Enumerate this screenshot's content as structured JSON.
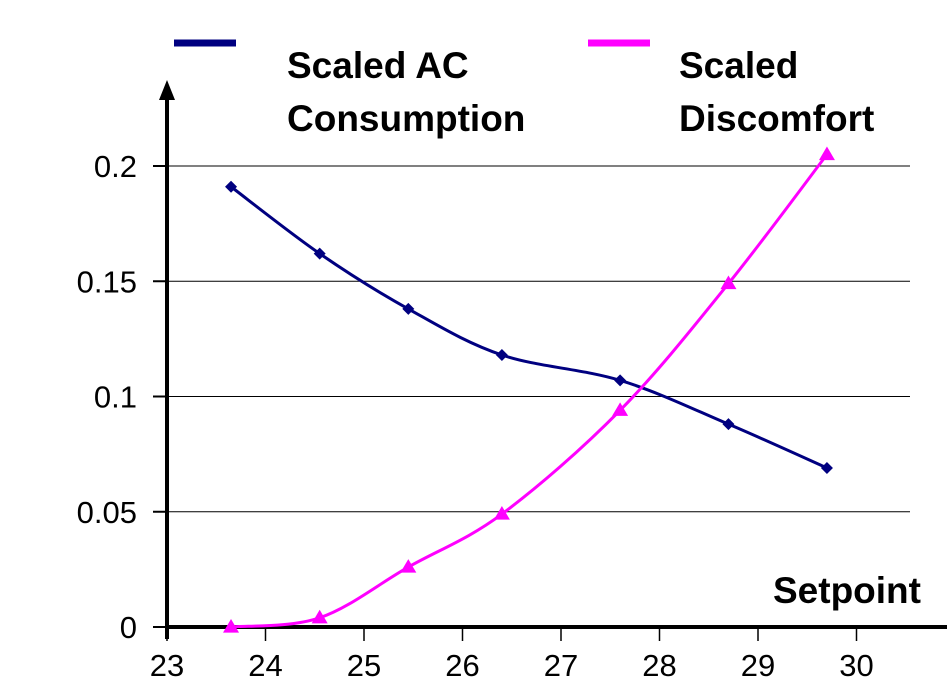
{
  "chart_data": {
    "type": "line",
    "title": "",
    "xlabel": "Setpoint",
    "ylabel": "",
    "x_ticks": [
      "23",
      "24",
      "25",
      "26",
      "27",
      "28",
      "29",
      "30"
    ],
    "y_ticks": [
      "0",
      "0.05",
      "0.1",
      "0.15",
      "0.2"
    ],
    "xlim": [
      23,
      30.7
    ],
    "ylim": [
      0,
      0.2
    ],
    "grid": "horizontal",
    "legend_position": "top",
    "series": [
      {
        "name": "Scaled AC Consumption",
        "name_lines": [
          "Scaled AC",
          "Consumption"
        ],
        "color": "#000080",
        "marker": "diamond",
        "x": [
          23.65,
          24.55,
          25.45,
          26.4,
          27.6,
          28.7,
          29.7
        ],
        "values": [
          0.191,
          0.162,
          0.138,
          0.118,
          0.107,
          0.088,
          0.069
        ]
      },
      {
        "name": "Scaled Discomfort",
        "name_lines": [
          "Scaled",
          "Discomfort"
        ],
        "color": "#ff00ff",
        "marker": "triangle",
        "x": [
          23.65,
          24.55,
          25.45,
          26.4,
          27.6,
          28.7,
          29.7
        ],
        "values": [
          0.0,
          0.004,
          0.026,
          0.049,
          0.094,
          0.149,
          0.205
        ]
      }
    ]
  }
}
